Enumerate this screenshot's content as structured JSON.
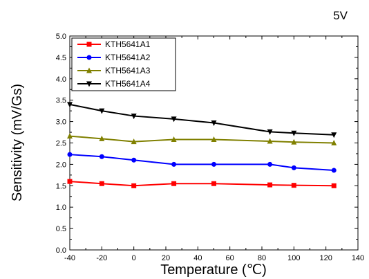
{
  "chart_data": {
    "type": "line",
    "xlabel": "Temperature (℃)",
    "ylabel": "Sensitivity (mV/Gs)",
    "annotation": "5V",
    "xlim": [
      -40,
      140
    ],
    "ylim": [
      0.0,
      5.0
    ],
    "x_ticks": [
      "-40",
      "-20",
      "0",
      "20",
      "40",
      "60",
      "80",
      "100",
      "120",
      "140"
    ],
    "y_ticks": [
      "0.0",
      "0.5",
      "1.0",
      "1.5",
      "2.0",
      "2.5",
      "3.0",
      "3.5",
      "4.0",
      "4.5",
      "5.0"
    ],
    "x": [
      -40,
      -20,
      0,
      25,
      50,
      85,
      100,
      125
    ],
    "legend_position": "top-left",
    "grid": false,
    "series": [
      {
        "name": "KTH5641A1",
        "color": "#ff0000",
        "marker": "square",
        "values": [
          1.6,
          1.55,
          1.5,
          1.55,
          1.55,
          1.52,
          1.51,
          1.5
        ]
      },
      {
        "name": "KTH5641A2",
        "color": "#0000ff",
        "marker": "circle",
        "values": [
          2.23,
          2.18,
          2.1,
          2.0,
          2.0,
          2.0,
          1.92,
          1.86
        ]
      },
      {
        "name": "KTH5641A3",
        "color": "#808000",
        "marker": "triangle-up",
        "values": [
          2.66,
          2.6,
          2.53,
          2.58,
          2.58,
          2.54,
          2.52,
          2.5
        ]
      },
      {
        "name": "KTH5641A4",
        "color": "#000000",
        "marker": "triangle-down",
        "values": [
          3.4,
          3.25,
          3.13,
          3.06,
          2.97,
          2.76,
          2.73,
          2.69
        ]
      }
    ]
  }
}
